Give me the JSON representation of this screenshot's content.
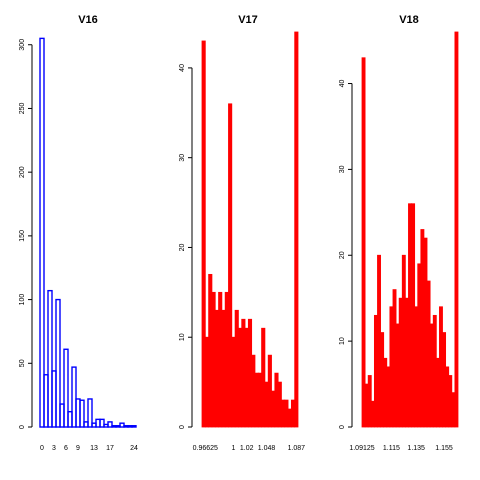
{
  "chart_data": [
    {
      "type": "bar",
      "title": "V16",
      "xlabel": "",
      "ylabel": "",
      "ylim": [
        0,
        310
      ],
      "yticks": [
        0,
        50,
        100,
        150,
        200,
        250,
        300
      ],
      "xticks": [
        "0",
        "3",
        "6",
        "9",
        "13",
        "17",
        "24"
      ],
      "bar_style": "outline",
      "color": "#0000ff",
      "values": [
        305,
        41,
        107,
        44,
        100,
        18,
        61,
        12,
        47,
        22,
        21,
        4,
        22,
        3,
        6,
        6,
        2,
        4,
        1,
        1,
        3,
        1,
        1,
        1
      ]
    },
    {
      "type": "bar",
      "title": "V17",
      "xlabel": "",
      "ylabel": "",
      "ylim": [
        0,
        44
      ],
      "yticks": [
        0,
        10,
        20,
        30,
        40
      ],
      "xticks": [
        "0.96625",
        "1",
        "1.02",
        "1.048",
        "1.087"
      ],
      "bar_style": "filled",
      "color": "#ff0000",
      "values": [
        43,
        10,
        17,
        15,
        13,
        15,
        13,
        15,
        36,
        10,
        13,
        11,
        12,
        11,
        12,
        8,
        6,
        6,
        11,
        5,
        8,
        4,
        6,
        5,
        3,
        3,
        2,
        3,
        44
      ]
    },
    {
      "type": "bar",
      "title": "V18",
      "xlabel": "",
      "ylabel": "",
      "ylim": [
        0,
        46
      ],
      "yticks": [
        0,
        10,
        20,
        30,
        40
      ],
      "xticks": [
        "1.09125",
        "1.115",
        "1.135",
        "1.155"
      ],
      "bar_style": "filled",
      "color": "#ff0000",
      "values": [
        43,
        5,
        6,
        3,
        13,
        20,
        11,
        8,
        7,
        14,
        16,
        12,
        15,
        20,
        15,
        26,
        26,
        14,
        19,
        23,
        22,
        17,
        12,
        13,
        8,
        14,
        11,
        7,
        6,
        4,
        46
      ]
    }
  ]
}
